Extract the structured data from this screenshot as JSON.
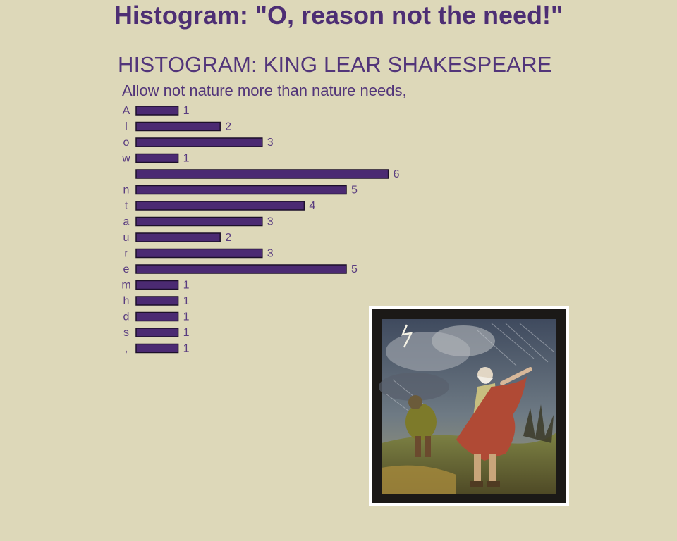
{
  "page": {
    "heading": "Histogram: \"O, reason not the need!\""
  },
  "chart_data": {
    "type": "bar",
    "orientation": "horizontal",
    "title": "HISTOGRAM: KING LEAR SHAKESPEARE",
    "subtitle": "Allow not nature more than nature needs,",
    "categories": [
      "A",
      "l",
      "o",
      "w",
      " ",
      "n",
      "t",
      "a",
      "u",
      "r",
      "e",
      "m",
      "h",
      "d",
      "s",
      ","
    ],
    "values": [
      1,
      2,
      3,
      1,
      6,
      5,
      4,
      3,
      2,
      3,
      5,
      1,
      1,
      1,
      1,
      1
    ],
    "xlim": [
      0,
      6
    ],
    "grid": false,
    "legend": "none",
    "bar_color": "#4b2a72"
  },
  "illustration": {
    "subject": "king-lear-in-storm-painting"
  }
}
